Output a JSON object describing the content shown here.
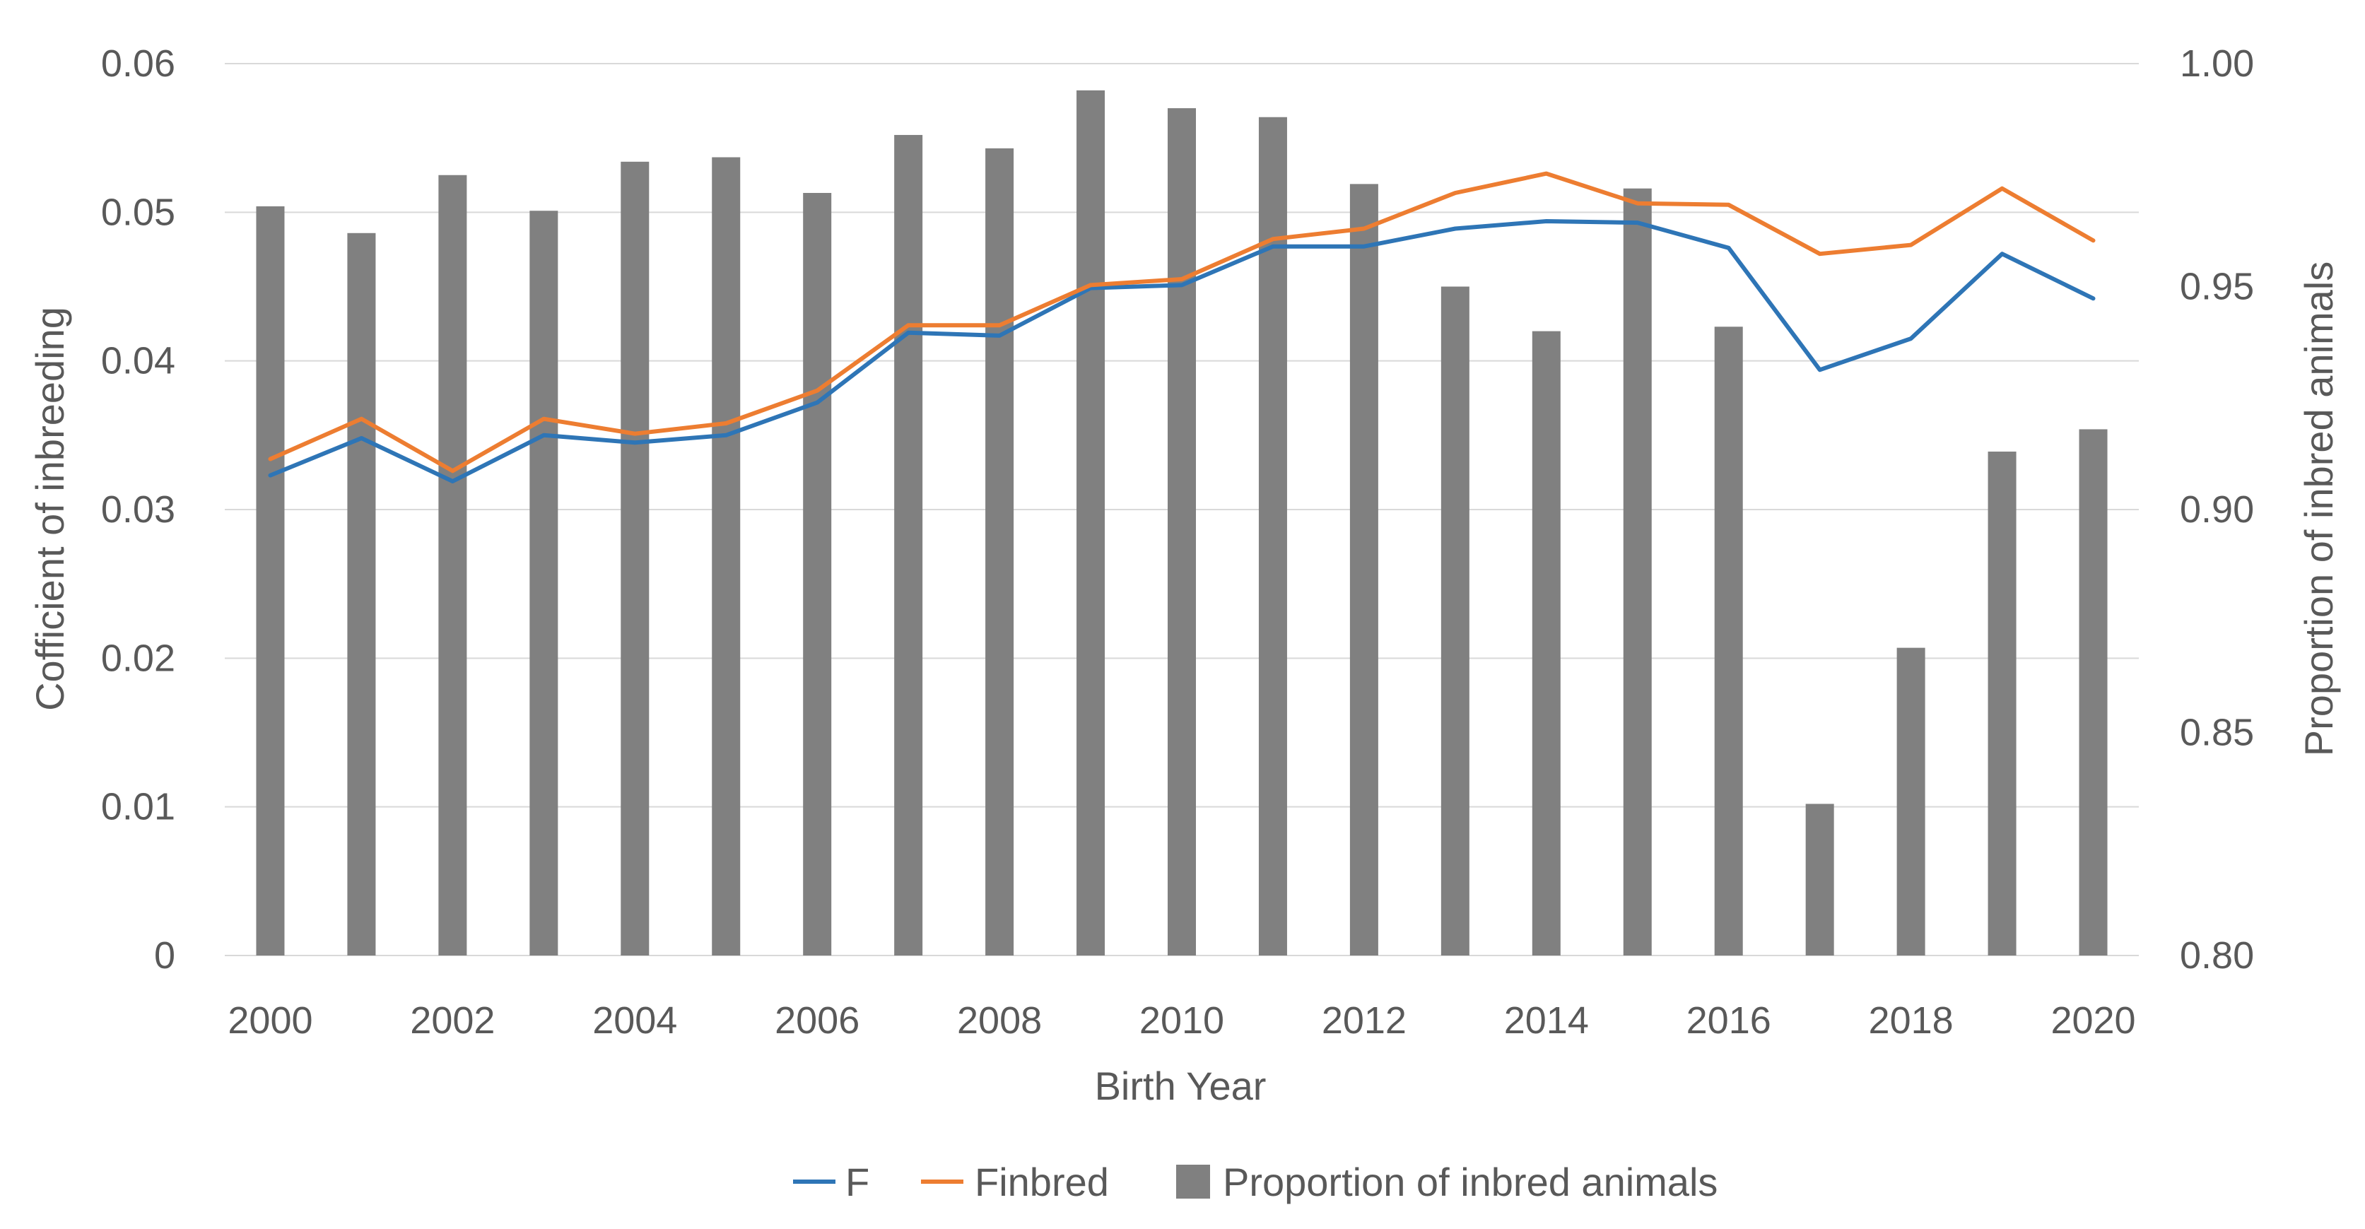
{
  "chart_data": {
    "type": "bar+line (dual axis)",
    "title": "",
    "xlabel": "Birth Year",
    "ylabel_left": "Cofficient of inbreeding",
    "ylabel_right": "Proportion of inbred animals",
    "x": [
      2000,
      2001,
      2002,
      2003,
      2004,
      2005,
      2006,
      2007,
      2008,
      2009,
      2010,
      2011,
      2012,
      2013,
      2014,
      2015,
      2016,
      2017,
      2018,
      2019,
      2020
    ],
    "x_tick_labels": [
      "2000",
      "2002",
      "2004",
      "2006",
      "2008",
      "2010",
      "2012",
      "2014",
      "2016",
      "2018",
      "2020"
    ],
    "y_left": {
      "min": 0,
      "max": 0.06,
      "ticks": [
        "0",
        "0.01",
        "0.02",
        "0.03",
        "0.04",
        "0.05",
        "0.06"
      ]
    },
    "y_right": {
      "min": 0.8,
      "max": 1.0,
      "ticks": [
        "0.80",
        "0.85",
        "0.90",
        "0.95",
        "1.00"
      ]
    },
    "grid": true,
    "legend_position": "bottom",
    "series": [
      {
        "name": "F",
        "type": "line",
        "axis": "left",
        "color": "#2e75b6",
        "values": [
          0.0323,
          0.0348,
          0.0319,
          0.035,
          0.0345,
          0.035,
          0.0372,
          0.0419,
          0.0417,
          0.0449,
          0.0451,
          0.0477,
          0.0477,
          0.0489,
          0.0494,
          0.0493,
          0.0476,
          0.0394,
          0.0415,
          0.0472,
          0.0442
        ]
      },
      {
        "name": "Finbred",
        "type": "line",
        "axis": "left",
        "color": "#ed7d31",
        "values": [
          0.0334,
          0.0361,
          0.0326,
          0.0361,
          0.0351,
          0.0358,
          0.038,
          0.0424,
          0.0424,
          0.0451,
          0.0455,
          0.0482,
          0.0489,
          0.0513,
          0.0526,
          0.0506,
          0.0505,
          0.0472,
          0.0478,
          0.0516,
          0.0481
        ]
      },
      {
        "name": "Proportion of inbred animals",
        "type": "bar",
        "axis": "right",
        "color": "#808080",
        "values": [
          0.968,
          0.962,
          0.975,
          0.967,
          0.978,
          0.979,
          0.971,
          0.984,
          0.981,
          0.994,
          0.99,
          0.988,
          0.973,
          0.95,
          0.94,
          0.972,
          0.941,
          0.834,
          0.869,
          0.913,
          0.918
        ]
      }
    ]
  }
}
